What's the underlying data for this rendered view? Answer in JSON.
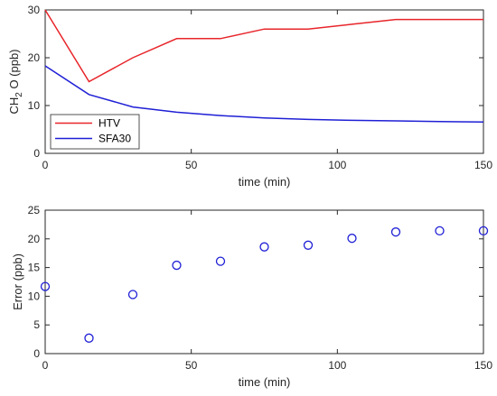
{
  "chart_data": [
    {
      "type": "line",
      "xlabel": "time (min)",
      "ylabel_main": "CH",
      "ylabel_sub": "2",
      "ylabel_rest": " O (ppb)",
      "xlim": [
        0,
        150
      ],
      "ylim": [
        0,
        30
      ],
      "xticks": [
        "0",
        "50",
        "100",
        "150"
      ],
      "yticks": [
        "0",
        "10",
        "20",
        "30"
      ],
      "legend_position": "bottom-left",
      "series": [
        {
          "name": "HTV",
          "color": "#e8252a",
          "x": [
            0,
            15,
            30,
            45,
            60,
            75,
            90,
            105,
            120,
            135,
            150
          ],
          "y": [
            30,
            15,
            20,
            24,
            24,
            26,
            26,
            27,
            28,
            28,
            28
          ]
        },
        {
          "name": "SFA30",
          "color": "#1f1fd6",
          "x": [
            0,
            15,
            30,
            45,
            60,
            75,
            90,
            105,
            120,
            135,
            150
          ],
          "y": [
            18.3,
            12.3,
            9.7,
            8.6,
            7.9,
            7.4,
            7.1,
            6.9,
            6.8,
            6.65,
            6.55
          ]
        }
      ]
    },
    {
      "type": "scatter",
      "xlabel": "time (min)",
      "ylabel": "Error (ppb)",
      "xlim": [
        0,
        150
      ],
      "ylim": [
        0,
        25
      ],
      "xticks": [
        "0",
        "50",
        "100",
        "150"
      ],
      "yticks": [
        "0",
        "5",
        "10",
        "15",
        "20",
        "25"
      ],
      "marker_color": "#1f1fd6",
      "x": [
        0,
        15,
        30,
        45,
        60,
        75,
        90,
        105,
        120,
        135,
        150
      ],
      "y": [
        11.7,
        2.7,
        10.3,
        15.4,
        16.1,
        18.6,
        18.9,
        20.1,
        21.2,
        21.4,
        21.4
      ]
    }
  ]
}
